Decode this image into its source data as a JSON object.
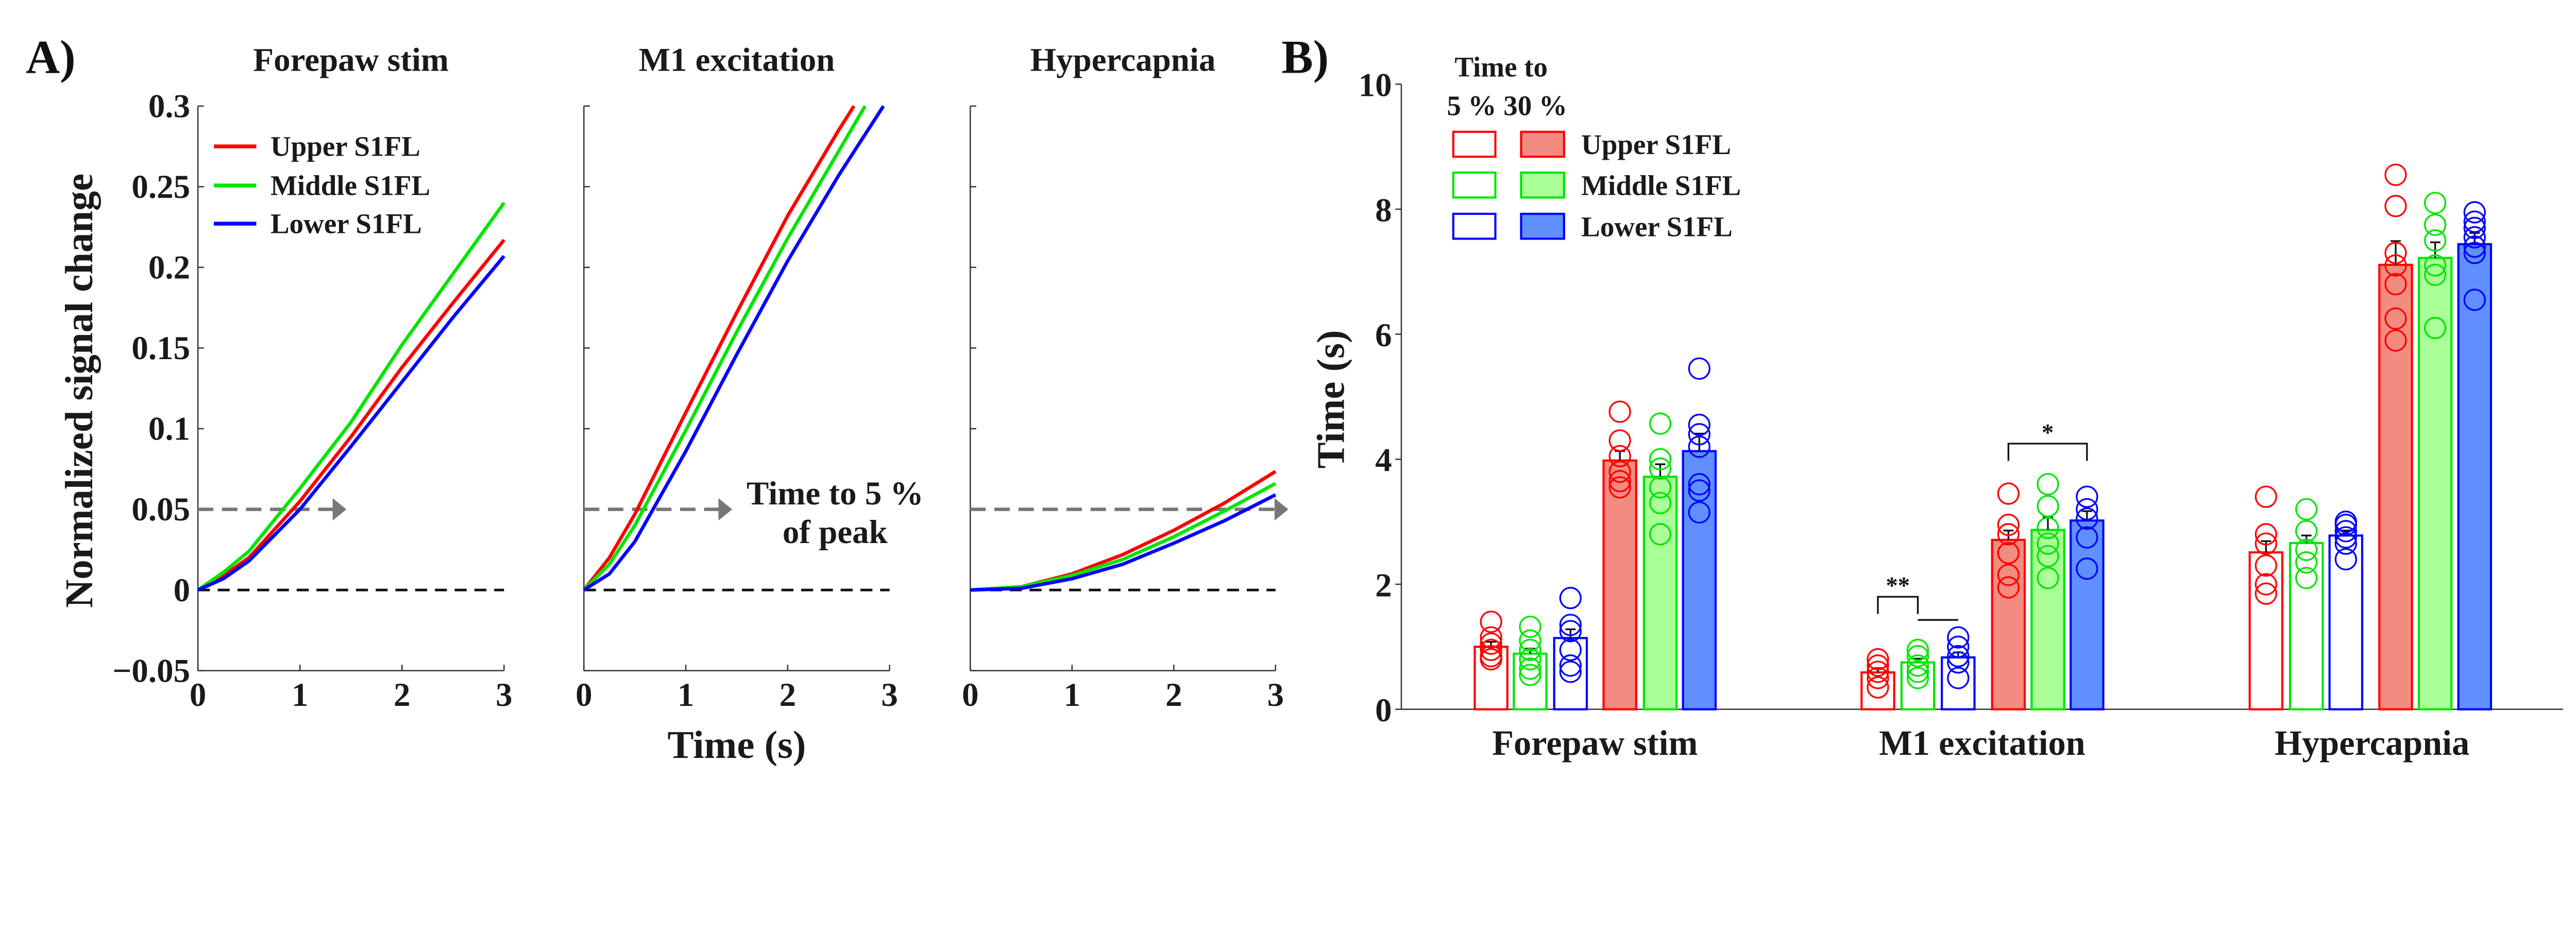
{
  "colors": {
    "upper": "#ff0000",
    "middle": "#00e600",
    "lower": "#0000ff",
    "upper_fill": "#f28b80",
    "middle_fill": "#aaff99",
    "lower_fill": "#6090ff",
    "arrow": "#777777",
    "axis": "#333333"
  },
  "panel_labels": {
    "a": "A)",
    "b": "B)"
  },
  "chart_data": [
    {
      "type": "line",
      "panel": "A",
      "ylabel": "Normalized signal change",
      "xlabel": "Time (s)",
      "ylim": [
        -0.05,
        0.3
      ],
      "xlim": [
        0,
        3
      ],
      "yticks": [
        "−0.05",
        "0",
        "0.05",
        "0.1",
        "0.15",
        "0.2",
        "0.25",
        "0.3"
      ],
      "ytick_values": [
        -0.05,
        0,
        0.05,
        0.1,
        0.15,
        0.2,
        0.25,
        0.3
      ],
      "xticks": [
        "0",
        "1",
        "2",
        "3"
      ],
      "legend": {
        "placement": "top-left",
        "entries": [
          "Upper S1FL",
          "Middle S1FL",
          "Lower S1FL"
        ]
      },
      "threshold": 0.05,
      "annotation": [
        "Time to 5 %",
        "of peak"
      ],
      "subplots": [
        {
          "title": "Forepaw stim",
          "arrow_end": 1.43,
          "series": [
            {
              "name": "Upper S1FL",
              "x": [
                0,
                0.25,
                0.5,
                1,
                1.5,
                2,
                2.5,
                3
              ],
              "y": [
                0,
                0.009,
                0.02,
                0.055,
                0.095,
                0.138,
                0.178,
                0.217
              ]
            },
            {
              "name": "Middle S1FL",
              "x": [
                0,
                0.25,
                0.5,
                1,
                1.5,
                2,
                2.5,
                3
              ],
              "y": [
                0,
                0.011,
                0.024,
                0.063,
                0.104,
                0.152,
                0.196,
                0.24
              ]
            },
            {
              "name": "Lower S1FL",
              "x": [
                0,
                0.25,
                0.5,
                1,
                1.5,
                2,
                2.5,
                3
              ],
              "y": [
                0,
                0.007,
                0.018,
                0.05,
                0.089,
                0.129,
                0.169,
                0.207
              ]
            }
          ]
        },
        {
          "title": "M1 excitation",
          "arrow_end": 1.43,
          "series": [
            {
              "name": "Upper S1FL",
              "x": [
                0,
                0.25,
                0.5,
                1,
                1.5,
                2,
                2.5,
                2.65
              ],
              "y": [
                0,
                0.02,
                0.047,
                0.11,
                0.172,
                0.232,
                0.285,
                0.3
              ]
            },
            {
              "name": "Middle S1FL",
              "x": [
                0,
                0.25,
                0.5,
                1,
                1.5,
                2,
                2.5,
                2.76
              ],
              "y": [
                0,
                0.016,
                0.04,
                0.099,
                0.16,
                0.218,
                0.272,
                0.3
              ]
            },
            {
              "name": "Lower S1FL",
              "x": [
                0,
                0.25,
                0.5,
                1,
                1.5,
                2,
                2.5,
                2.94
              ],
              "y": [
                0,
                0.01,
                0.03,
                0.086,
                0.146,
                0.204,
                0.257,
                0.3
              ]
            }
          ]
        },
        {
          "title": "Hypercapnia",
          "arrow_end": 3.1,
          "series": [
            {
              "name": "Upper S1FL",
              "x": [
                0,
                0.5,
                1,
                1.5,
                2,
                2.5,
                3
              ],
              "y": [
                0,
                0.002,
                0.01,
                0.022,
                0.037,
                0.054,
                0.0735
              ]
            },
            {
              "name": "Middle S1FL",
              "x": [
                0,
                0.5,
                1,
                1.5,
                2,
                2.5,
                3
              ],
              "y": [
                0,
                0.002,
                0.009,
                0.019,
                0.033,
                0.049,
                0.066
              ]
            },
            {
              "name": "Lower S1FL",
              "x": [
                0,
                0.5,
                1,
                1.5,
                2,
                2.5,
                3
              ],
              "y": [
                0,
                0.001,
                0.007,
                0.016,
                0.029,
                0.043,
                0.059
              ]
            }
          ]
        }
      ]
    },
    {
      "type": "bar",
      "panel": "B",
      "ylabel": "Time (s)",
      "ylim": [
        0,
        10
      ],
      "yticks": [
        "0",
        "2",
        "4",
        "6",
        "8",
        "10"
      ],
      "ytick_values": [
        0,
        2,
        4,
        6,
        8,
        10
      ],
      "categories": [
        "Forepaw stim",
        "M1 excitation",
        "Hypercapnia"
      ],
      "legend": {
        "placement": "top-left",
        "header": [
          "Time to",
          "5 % 30 %"
        ],
        "entries": [
          "Upper S1FL",
          "Middle S1FL",
          "Lower S1FL"
        ]
      },
      "series": [
        {
          "name": "Upper S1FL",
          "measure": "5 %",
          "values": [
            1.0,
            0.59,
            2.51
          ],
          "sem": [
            0.08,
            0.07,
            0.18
          ],
          "points": [
            [
              1.4,
              1.15,
              1.05,
              0.95,
              0.85,
              0.8
            ],
            [
              0.8,
              0.7,
              0.6,
              0.5,
              0.35
            ],
            [
              3.4,
              2.8,
              2.65,
              2.3,
              2.0,
              1.85
            ]
          ]
        },
        {
          "name": "Middle S1FL",
          "measure": "5 %",
          "values": [
            0.89,
            0.75,
            2.66
          ],
          "sem": [
            0.08,
            0.06,
            0.12
          ],
          "points": [
            [
              1.32,
              1.1,
              0.95,
              0.8,
              0.65,
              0.55
            ],
            [
              0.95,
              0.85,
              0.7,
              0.6,
              0.5
            ],
            [
              3.2,
              2.85,
              2.55,
              2.35,
              2.1
            ]
          ]
        },
        {
          "name": "Lower S1FL",
          "measure": "5 %",
          "values": [
            1.14,
            0.83,
            2.78
          ],
          "sem": [
            0.14,
            0.08,
            0.08
          ],
          "points": [
            [
              1.78,
              1.35,
              1.25,
              0.95,
              0.7,
              0.6
            ],
            [
              1.15,
              1.0,
              0.85,
              0.75,
              0.5
            ],
            [
              3.0,
              2.95,
              2.85,
              2.75,
              2.65,
              2.4
            ]
          ]
        },
        {
          "name": "Upper S1FL",
          "measure": "30 %",
          "values": [
            3.98,
            2.71,
            7.11
          ],
          "sem": [
            0.15,
            0.15,
            0.38
          ],
          "points": [
            [
              4.76,
              4.3,
              4.05,
              3.8,
              3.65,
              3.55
            ],
            [
              3.45,
              2.95,
              2.8,
              2.5,
              2.15,
              1.95
            ],
            [
              8.55,
              8.05,
              7.3,
              7.1,
              6.8,
              6.25,
              5.9
            ]
          ]
        },
        {
          "name": "Middle S1FL",
          "measure": "30 %",
          "values": [
            3.72,
            2.87,
            7.22
          ],
          "sem": [
            0.2,
            0.2,
            0.25
          ],
          "points": [
            [
              4.57,
              4.0,
              3.85,
              3.55,
              3.3,
              2.8
            ],
            [
              3.6,
              3.25,
              2.9,
              2.65,
              2.45,
              2.1
            ],
            [
              8.1,
              7.75,
              7.5,
              7.1,
              6.95,
              6.1
            ]
          ]
        },
        {
          "name": "Lower S1FL",
          "measure": "30 %",
          "values": [
            4.13,
            3.02,
            7.44
          ],
          "sem": [
            0.28,
            0.15,
            0.18
          ],
          "points": [
            [
              5.45,
              4.55,
              4.4,
              4.2,
              3.6,
              3.5,
              3.15
            ],
            [
              3.4,
              3.2,
              3.05,
              2.75,
              2.25
            ],
            [
              7.95,
              7.8,
              7.7,
              7.55,
              7.4,
              7.3,
              6.55
            ]
          ]
        }
      ],
      "significance": [
        {
          "label": "**",
          "category": "M1 excitation",
          "from": "Upper S1FL 5 %",
          "to": "Middle S1FL 5 %",
          "y": 1.8
        },
        {
          "label": "",
          "category": "M1 excitation",
          "from": "Middle S1FL 5 %",
          "to": "Lower S1FL 5 %",
          "y": 1.43
        },
        {
          "label": "*",
          "category": "M1 excitation",
          "from": "Upper S1FL 30 %",
          "to": "Lower S1FL 30 %",
          "y": 4.25
        }
      ]
    }
  ]
}
